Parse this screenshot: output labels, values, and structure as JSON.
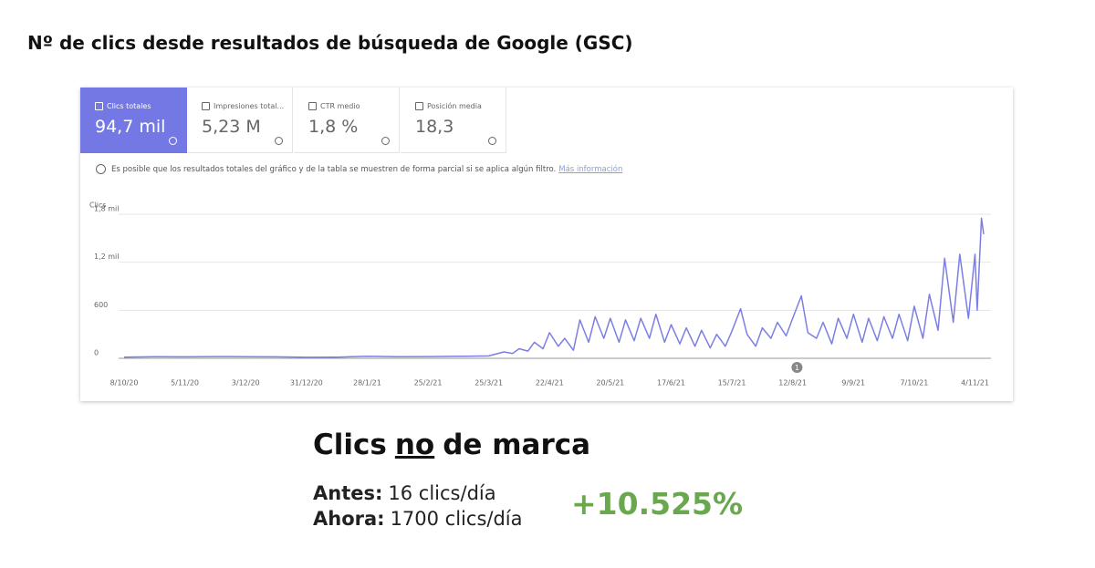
{
  "title": "Nº de clics desde resultados de búsqueda de Google (GSC)",
  "cards": [
    {
      "label": "Clics totales",
      "value": "94,7 mil",
      "selected": true
    },
    {
      "label": "Impresiones total...",
      "value": "5,23 M",
      "selected": false
    },
    {
      "label": "CTR medio",
      "value": "1,8 %",
      "selected": false
    },
    {
      "label": "Posición media",
      "value": "18,3",
      "selected": false
    }
  ],
  "notice": {
    "text": "Es posible que los resultados totales del gráfico y de la tabla se muestren de forma parcial si se aplica algún filtro.",
    "link": "Más información"
  },
  "chart_data": {
    "type": "line",
    "y_label": "Clics",
    "color": "#7b7fe3",
    "grid": true,
    "xlim": [
      "8/10/20",
      "8/11/21"
    ],
    "xticks": [
      "8/10/20",
      "5/11/20",
      "3/12/20",
      "31/12/20",
      "28/1/21",
      "25/2/21",
      "25/3/21",
      "22/4/21",
      "20/5/21",
      "17/6/21",
      "15/7/21",
      "12/8/21",
      "9/9/21",
      "7/10/21",
      "4/11/21"
    ],
    "ylim": [
      0,
      1800
    ],
    "yticks": [
      0,
      600,
      {
        "value": 1200,
        "label": "1,2 mil"
      },
      {
        "value": 1800,
        "label": "1,8 mil"
      }
    ],
    "x": [
      "8/10/20",
      "22/10/20",
      "5/11/20",
      "19/11/20",
      "3/12/20",
      "17/12/20",
      "31/12/20",
      "14/1/21",
      "28/1/21",
      "11/2/21",
      "25/2/21",
      "11/3/21",
      "25/3/21",
      "1/4/21",
      "5/4/21",
      "8/4/21",
      "12/4/21",
      "15/4/21",
      "19/4/21",
      "22/4/21",
      "26/4/21",
      "29/4/21",
      "3/5/21",
      "6/5/21",
      "10/5/21",
      "13/5/21",
      "17/5/21",
      "20/5/21",
      "24/5/21",
      "27/5/21",
      "31/5/21",
      "3/6/21",
      "7/6/21",
      "10/6/21",
      "14/6/21",
      "17/6/21",
      "21/6/21",
      "24/6/21",
      "28/6/21",
      "1/7/21",
      "5/7/21",
      "8/7/21",
      "12/7/21",
      "15/7/21",
      "19/7/21",
      "22/7/21",
      "26/7/21",
      "29/7/21",
      "2/8/21",
      "5/8/21",
      "9/8/21",
      "12/8/21",
      "16/8/21",
      "19/8/21",
      "23/8/21",
      "26/8/21",
      "30/8/21",
      "2/9/21",
      "6/9/21",
      "9/9/21",
      "13/9/21",
      "16/9/21",
      "20/9/21",
      "23/9/21",
      "27/9/21",
      "30/9/21",
      "4/10/21",
      "7/10/21",
      "11/10/21",
      "14/10/21",
      "18/10/21",
      "21/10/21",
      "25/10/21",
      "28/10/21",
      "1/11/21",
      "4/11/21",
      "5/11/21",
      "7/11/21",
      "8/11/21"
    ],
    "values": [
      15,
      20,
      18,
      22,
      20,
      18,
      12,
      15,
      25,
      20,
      22,
      25,
      30,
      80,
      60,
      120,
      90,
      200,
      120,
      320,
      150,
      250,
      100,
      480,
      200,
      520,
      250,
      500,
      200,
      480,
      220,
      500,
      250,
      550,
      200,
      420,
      180,
      380,
      150,
      350,
      130,
      300,
      150,
      340,
      620,
      300,
      150,
      380,
      250,
      450,
      280,
      500,
      780,
      320,
      250,
      450,
      180,
      500,
      250,
      550,
      200,
      500,
      220,
      520,
      250,
      550,
      220,
      650,
      250,
      800,
      350,
      1250,
      450,
      1300,
      500,
      1300,
      600,
      1750,
      1550
    ],
    "annotation": {
      "x": "14/8/21",
      "text": "1"
    }
  },
  "summary": {
    "heading": [
      "Clics",
      "no",
      "de marca"
    ],
    "rows": [
      {
        "label": "Antes:",
        "text": "16 clics/día"
      },
      {
        "label": "Ahora:",
        "text": "1700 clics/día"
      }
    ],
    "change": "+10.525%"
  }
}
